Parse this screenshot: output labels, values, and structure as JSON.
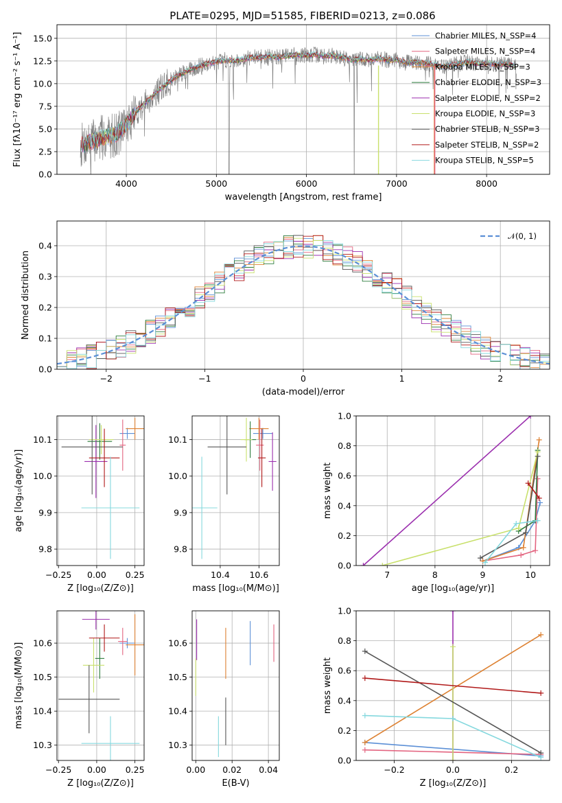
{
  "figure_title": "PLATE=0295, MJD=51585, FIBERID=0213, z=0.086",
  "colors": {
    "chabrier_miles": "#5b8fd6",
    "salpeter_miles": "#e3637f",
    "kroupa_miles": "#dd8030",
    "chabrier_elodie": "#2a7a3a",
    "salpeter_elodie": "#9b2fae",
    "kroupa_elodie": "#c8e06b",
    "chabrier_stelib": "#555555",
    "salpeter_stelib": "#b01818",
    "kroupa_stelib": "#84d8de",
    "gaussian": "#5b8fd6"
  },
  "chart_data": [
    {
      "id": "spectrum",
      "type": "line",
      "title": "PLATE=0295, MJD=51585, FIBERID=0213, z=0.086",
      "xlabel": "wavelength [Angstrom, rest frame]",
      "ylabel": "Flux [fλ10⁻¹⁷ erg cm⁻² s⁻¹ A⁻¹]",
      "xlim": [
        3230,
        8700
      ],
      "ylim": [
        0,
        16.5
      ],
      "xticks": [
        4000,
        5000,
        6000,
        7000,
        8000
      ],
      "yticks": [
        0.0,
        2.5,
        5.0,
        7.5,
        10.0,
        12.5,
        15.0
      ],
      "legend_position": "right",
      "continuum": {
        "x": [
          3500,
          3600,
          3700,
          3800,
          3900,
          4000,
          4100,
          4200,
          4300,
          4400,
          4500,
          4600,
          4700,
          4800,
          4900,
          5000,
          5100,
          5200,
          5300,
          5400,
          5500,
          5600,
          5700,
          5800,
          5900,
          6000,
          6100,
          6200,
          6300,
          6400,
          6500,
          6600,
          6700,
          6800,
          6900,
          7000,
          7100,
          7200,
          7300,
          7400,
          7500,
          7600,
          7700,
          7800,
          7900,
          8000,
          8100,
          8200,
          8300
        ],
        "y": [
          3.2,
          3.6,
          3.9,
          4.2,
          4.5,
          5.5,
          6.8,
          7.8,
          8.7,
          9.6,
          10.4,
          11.0,
          11.5,
          11.9,
          12.2,
          12.4,
          12.6,
          12.5,
          12.7,
          12.9,
          12.9,
          13.0,
          12.9,
          13.1,
          13.2,
          13.1,
          13.2,
          13.0,
          13.1,
          12.9,
          12.6,
          12.7,
          12.6,
          12.8,
          12.6,
          12.6,
          12.3,
          12.4,
          12.3,
          12.1,
          11.9,
          12.0,
          12.2,
          12.4,
          12.2,
          12.3,
          12.1,
          12.2,
          12.0
        ]
      },
      "series": [
        {
          "name": "Chabrier MILES, N_SSP=4",
          "color": "#5b8fd6"
        },
        {
          "name": "Salpeter MILES, N_SSP=4",
          "color": "#e3637f"
        },
        {
          "name": "Kroupa MILES, N_SSP=3",
          "color": "#dd8030"
        },
        {
          "name": "Chabrier ELODIE, N_SSP=3",
          "color": "#2a7a3a"
        },
        {
          "name": "Salpeter ELODIE, N_SSP=2",
          "color": "#9b2fae"
        },
        {
          "name": "Kroupa ELODIE, N_SSP=3",
          "color": "#c8e06b"
        },
        {
          "name": "Chabrier STELIB, N_SSP=3",
          "color": "#555555"
        },
        {
          "name": "Salpeter STELIB, N_SSP=2",
          "color": "#b01818"
        },
        {
          "name": "Kroupa STELIB, N_SSP=5",
          "color": "#84d8de"
        }
      ]
    },
    {
      "id": "residuals",
      "type": "line",
      "xlabel": "(data-model)/error",
      "ylabel": "Normed distribution",
      "xlim": [
        -2.5,
        2.5
      ],
      "ylim": [
        0,
        0.48
      ],
      "xticks": [
        -2,
        -1,
        0,
        1,
        2
      ],
      "yticks": [
        0.0,
        0.1,
        0.2,
        0.3,
        0.4
      ],
      "legend_position": "top-right",
      "gaussian_label": "𝒩(0, 1)"
    },
    {
      "id": "age_vs_Z",
      "type": "scatter",
      "xlabel": "Z [log₁₀(Z/Z⊙)]",
      "ylabel": "age  [log₁₀(age/yr)]",
      "xlim": [
        -0.26,
        0.31
      ],
      "ylim": [
        9.755,
        10.165
      ],
      "xticks": [
        -0.25,
        0.0,
        0.25
      ],
      "xtick_labels": [
        "−0.25",
        "0.00",
        "0.25"
      ],
      "yticks": [
        9.8,
        9.9,
        10.0,
        10.1
      ],
      "points": [
        {
          "x": 0.2,
          "y": 10.117,
          "xerr": 0.05,
          "yerr": 0.015,
          "color": "#5b8fd6"
        },
        {
          "x": 0.17,
          "y": 10.085,
          "xerr": 0.02,
          "yerr": 0.07,
          "color": "#e3637f"
        },
        {
          "x": 0.25,
          "y": 10.13,
          "xerr": 0.06,
          "yerr": 0.03,
          "color": "#dd8030"
        },
        {
          "x": 0.02,
          "y": 10.095,
          "xerr": 0.08,
          "yerr": 0.05,
          "color": "#2a7a3a"
        },
        {
          "x": -0.005,
          "y": 10.04,
          "xerr": 0.075,
          "yerr": 0.1,
          "color": "#9b2fae"
        },
        {
          "x": 0.03,
          "y": 10.1,
          "xerr": 0.08,
          "yerr": 0.04,
          "color": "#c8e06b"
        },
        {
          "x": -0.03,
          "y": 10.08,
          "xerr": 0.2,
          "yerr": 0.13,
          "color": "#555555"
        },
        {
          "x": 0.05,
          "y": 10.05,
          "xerr": 0.1,
          "yerr": 0.08,
          "color": "#b01818"
        },
        {
          "x": 0.09,
          "y": 9.913,
          "xerr": 0.19,
          "yerr": 0.14,
          "color": "#84d8de"
        }
      ]
    },
    {
      "id": "age_vs_mass",
      "type": "scatter",
      "xlabel": "mass [log₁₀(M/M⊙)]",
      "xlim": [
        10.255,
        10.705
      ],
      "ylim": [
        9.755,
        10.165
      ],
      "xticks": [
        10.4,
        10.6
      ],
      "yticks": [
        9.8,
        9.9,
        10.0,
        10.1
      ],
      "points": [
        {
          "x": 10.62,
          "y": 10.117,
          "xerr": 0.05,
          "yerr": 0.015,
          "color": "#5b8fd6"
        },
        {
          "x": 10.605,
          "y": 10.085,
          "xerr": 0.02,
          "yerr": 0.07,
          "color": "#e3637f"
        },
        {
          "x": 10.6,
          "y": 10.13,
          "xerr": 0.05,
          "yerr": 0.03,
          "color": "#dd8030"
        },
        {
          "x": 10.555,
          "y": 10.1,
          "xerr": 0.03,
          "yerr": 0.05,
          "color": "#2a7a3a"
        },
        {
          "x": 10.67,
          "y": 10.04,
          "xerr": 0.02,
          "yerr": 0.08,
          "color": "#9b2fae"
        },
        {
          "x": 10.535,
          "y": 10.1,
          "xerr": 0.03,
          "yerr": 0.06,
          "color": "#c8e06b"
        },
        {
          "x": 10.435,
          "y": 10.08,
          "xerr": 0.1,
          "yerr": 0.13,
          "color": "#555555"
        },
        {
          "x": 10.615,
          "y": 10.05,
          "xerr": 0.02,
          "yerr": 0.08,
          "color": "#b01818"
        },
        {
          "x": 10.305,
          "y": 9.913,
          "xerr": 0.08,
          "yerr": 0.14,
          "color": "#84d8de"
        }
      ]
    },
    {
      "id": "mass_weight_vs_age",
      "type": "line",
      "xlabel": "age  [log₁₀(age/yr)]",
      "ylabel": "mass weight",
      "xlim": [
        6.35,
        10.4
      ],
      "ylim": [
        0,
        1.0
      ],
      "xticks": [
        7,
        8,
        9,
        10
      ],
      "yticks": [
        0.0,
        0.2,
        0.4,
        0.6,
        0.8,
        1.0
      ],
      "series": [
        {
          "color": "#5b8fd6",
          "x": [
            9.0,
            9.75,
            10.1,
            10.2
          ],
          "y": [
            0.03,
            0.12,
            0.3,
            0.42
          ]
        },
        {
          "color": "#e3637f",
          "x": [
            9.0,
            9.8,
            10.1,
            10.15
          ],
          "y": [
            0.03,
            0.07,
            0.1,
            0.58
          ]
        },
        {
          "color": "#dd8030",
          "x": [
            9.0,
            9.85,
            10.18
          ],
          "y": [
            0.03,
            0.12,
            0.84
          ]
        },
        {
          "color": "#2a7a3a",
          "x": [
            9.75,
            10.1,
            10.15
          ],
          "y": [
            0.23,
            0.3,
            0.77
          ]
        },
        {
          "color": "#9b2fae",
          "x": [
            6.5,
            10.0
          ],
          "y": [
            0.0,
            1.0
          ]
        },
        {
          "color": "#c8e06b",
          "x": [
            6.9,
            9.75,
            10.15
          ],
          "y": [
            0.0,
            0.25,
            0.76
          ]
        },
        {
          "color": "#555555",
          "x": [
            8.95,
            9.9,
            10.15
          ],
          "y": [
            0.05,
            0.22,
            0.73
          ]
        },
        {
          "color": "#b01818",
          "x": [
            9.95,
            10.18
          ],
          "y": [
            0.55,
            0.45
          ]
        },
        {
          "color": "#84d8de",
          "x": [
            9.05,
            9.7,
            10.15
          ],
          "y": [
            0.02,
            0.28,
            0.3
          ]
        }
      ]
    },
    {
      "id": "mass_vs_Z",
      "type": "scatter",
      "xlabel": "Z [log₁₀(Z/Z⊙)]",
      "ylabel": "mass [log₁₀(M/M⊙)]",
      "xlim": [
        -0.26,
        0.31
      ],
      "ylim": [
        10.255,
        10.695
      ],
      "xticks": [
        -0.25,
        0.0,
        0.25
      ],
      "xtick_labels": [
        "−0.25",
        "0.00",
        "0.25"
      ],
      "yticks": [
        10.3,
        10.4,
        10.5,
        10.6
      ],
      "points": [
        {
          "x": 0.2,
          "y": 10.6,
          "xerr": 0.05,
          "yerr": 0.015,
          "color": "#5b8fd6"
        },
        {
          "x": 0.17,
          "y": 10.605,
          "xerr": 0.03,
          "yerr": 0.04,
          "color": "#e3637f"
        },
        {
          "x": 0.25,
          "y": 10.595,
          "xerr": 0.06,
          "yerr": 0.09,
          "color": "#dd8030"
        },
        {
          "x": 0.02,
          "y": 10.555,
          "xerr": 0.03,
          "yerr": 0.06,
          "color": "#2a7a3a"
        },
        {
          "x": -0.005,
          "y": 10.67,
          "xerr": 0.09,
          "yerr": 0.03,
          "color": "#9b2fae"
        },
        {
          "x": -0.02,
          "y": 10.535,
          "xerr": 0.07,
          "yerr": 0.08,
          "color": "#c8e06b"
        },
        {
          "x": -0.05,
          "y": 10.435,
          "xerr": 0.2,
          "yerr": 0.1,
          "color": "#555555"
        },
        {
          "x": 0.05,
          "y": 10.615,
          "xerr": 0.1,
          "yerr": 0.04,
          "color": "#b01818"
        },
        {
          "x": 0.09,
          "y": 10.305,
          "xerr": 0.19,
          "yerr": 0.08,
          "color": "#84d8de"
        }
      ]
    },
    {
      "id": "mass_vs_EBV",
      "type": "scatter",
      "xlabel": "E(B-V)",
      "xlim": [
        -0.002,
        0.046
      ],
      "ylim": [
        10.255,
        10.695
      ],
      "xticks": [
        0.0,
        0.02,
        0.04
      ],
      "xtick_labels": [
        "0.00",
        "0.02",
        "0.04"
      ],
      "yticks": [
        10.3,
        10.4,
        10.5,
        10.6
      ],
      "points": [
        {
          "x": 0.03,
          "y": 10.6,
          "yerr": 0.065,
          "color": "#5b8fd6"
        },
        {
          "x": 0.043,
          "y": 10.6,
          "yerr": 0.055,
          "color": "#e3637f"
        },
        {
          "x": 0.0165,
          "y": 10.57,
          "yerr": 0.075,
          "color": "#dd8030"
        },
        {
          "x": 0.0005,
          "y": 10.61,
          "yerr": 0.06,
          "color": "#9b2fae"
        },
        {
          "x": 0.0,
          "y": 10.5,
          "yerr": 0.055,
          "color": "#c8e06b"
        },
        {
          "x": 0.0165,
          "y": 10.37,
          "yerr": 0.07,
          "color": "#555555"
        },
        {
          "x": 0.0125,
          "y": 10.325,
          "yerr": 0.06,
          "color": "#84d8de"
        }
      ]
    },
    {
      "id": "mass_weight_vs_Z",
      "type": "line",
      "xlabel": "Z [log₁₀(Z/Z⊙)]",
      "ylabel": "mass weight",
      "xlim": [
        -0.33,
        0.33
      ],
      "ylim": [
        0,
        1.0
      ],
      "xticks": [
        -0.2,
        0.0,
        0.2
      ],
      "xtick_labels": [
        "−0.2",
        "0.0",
        "0.2"
      ],
      "yticks": [
        0.0,
        0.2,
        0.4,
        0.6,
        0.8,
        1.0
      ],
      "series": [
        {
          "color": "#5b8fd6",
          "x": [
            -0.3,
            0.3
          ],
          "y": [
            0.12,
            0.03
          ]
        },
        {
          "color": "#e3637f",
          "x": [
            -0.3,
            0.3
          ],
          "y": [
            0.07,
            0.04
          ]
        },
        {
          "color": "#dd8030",
          "x": [
            -0.3,
            0.3
          ],
          "y": [
            0.12,
            0.84
          ]
        },
        {
          "color": "#9b2fae",
          "x": [
            0.0,
            0.0
          ],
          "y": [
            1.0,
            0.0
          ]
        },
        {
          "color": "#c8e06b",
          "x": [
            0.0,
            0.0
          ],
          "y": [
            0.76,
            0.0
          ]
        },
        {
          "color": "#555555",
          "x": [
            -0.3,
            0.3
          ],
          "y": [
            0.73,
            0.05
          ]
        },
        {
          "color": "#b01818",
          "x": [
            -0.3,
            0.3
          ],
          "y": [
            0.55,
            0.45
          ]
        },
        {
          "color": "#84d8de",
          "x": [
            -0.3,
            0.0,
            0.3
          ],
          "y": [
            0.3,
            0.28,
            0.02
          ]
        }
      ]
    }
  ]
}
